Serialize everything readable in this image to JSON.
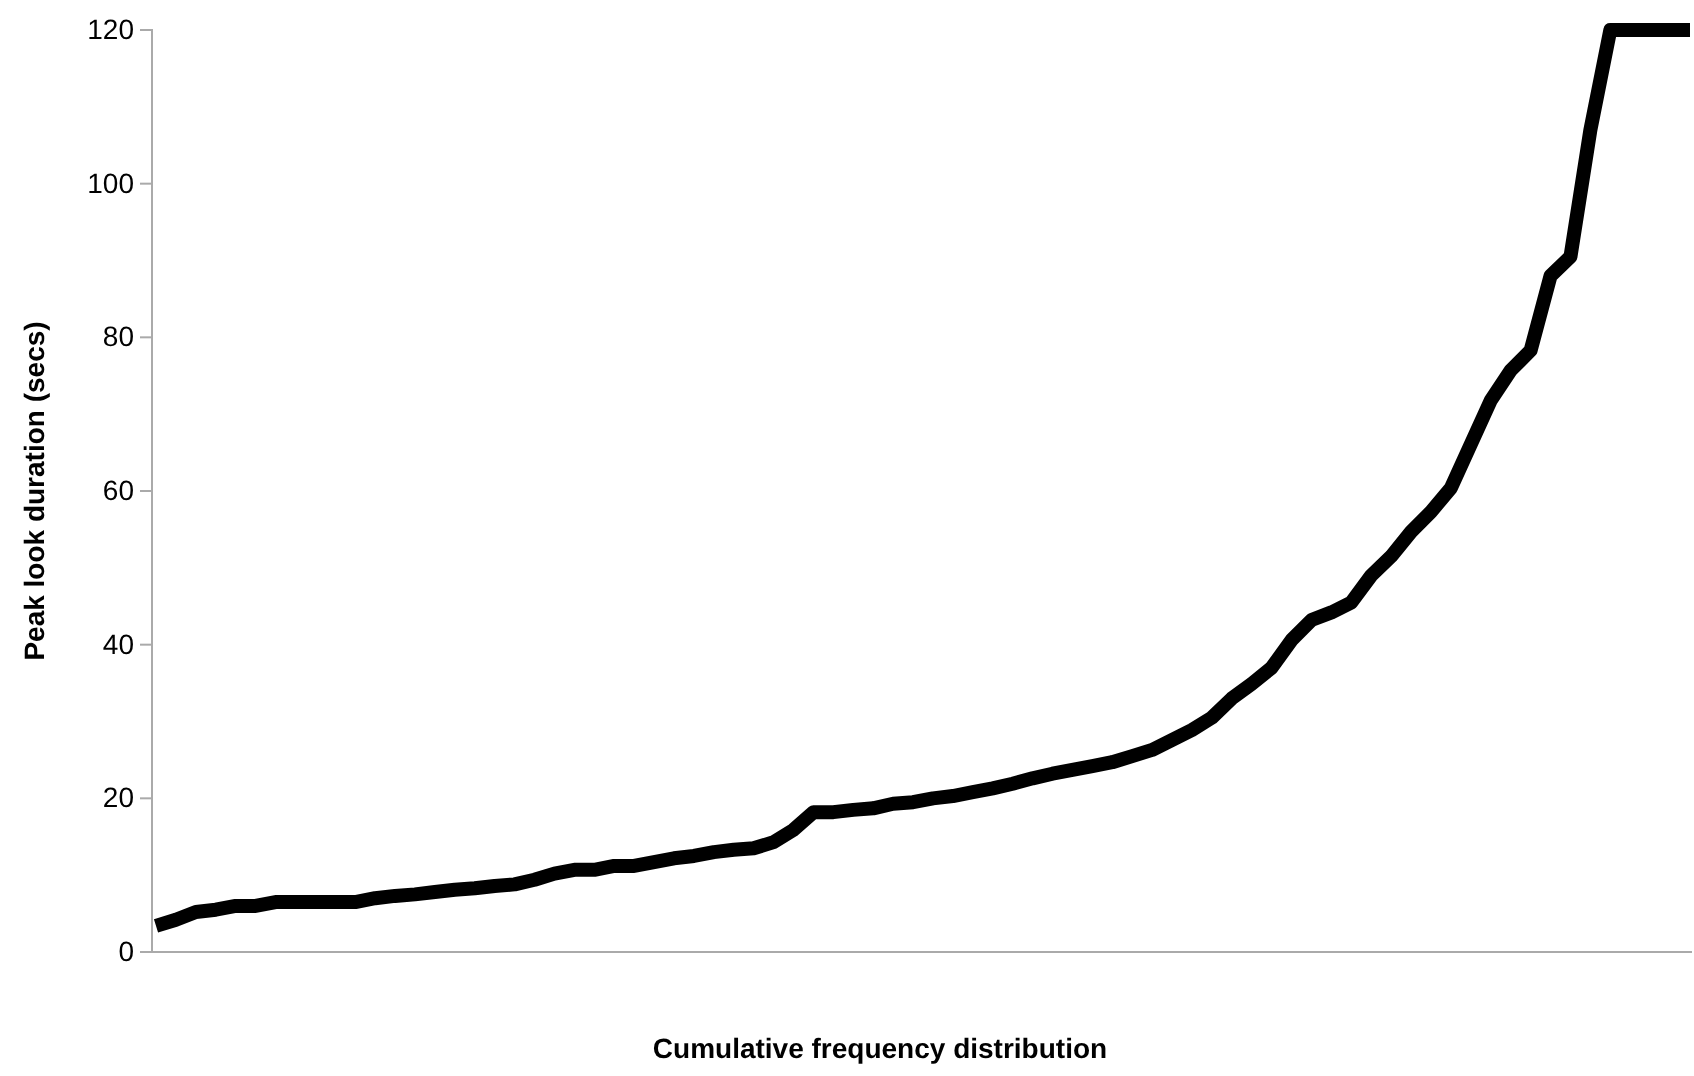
{
  "chart_data": {
    "type": "line",
    "xlabel": "Cumulative frequency distribution",
    "ylabel": "Peak look duration (secs)",
    "categories": [
      null,
      null,
      null,
      null,
      null,
      null,
      null,
      null,
      null,
      null,
      null,
      null,
      null,
      null,
      null,
      null,
      null,
      null,
      null,
      null,
      null,
      null,
      null,
      null,
      null,
      null,
      null,
      null,
      null,
      null,
      null,
      null,
      null,
      null,
      null,
      null,
      null,
      null,
      null,
      null,
      null,
      null,
      null,
      null,
      null,
      null,
      null,
      null,
      null,
      null,
      null,
      null,
      null,
      null,
      null,
      null,
      null,
      null,
      null,
      null,
      null,
      null,
      null,
      null,
      null,
      null,
      null,
      null,
      null,
      null,
      null,
      null,
      null,
      null,
      null,
      null,
      null,
      null
    ],
    "series": [
      {
        "color": "#000000",
        "values": [
          3.4,
          4.2,
          5.2,
          5.5,
          6,
          6,
          6.5,
          6.5,
          6.5,
          6.5,
          6.5,
          7,
          7.3,
          7.5,
          7.8,
          8.1,
          8.3,
          8.6,
          8.8,
          9.4,
          10.2,
          10.7,
          10.7,
          11.2,
          11.2,
          11.7,
          12.2,
          12.5,
          13,
          13.3,
          13.5,
          14.3,
          15.9,
          18.2,
          18.2,
          18.5,
          18.7,
          19.3,
          19.5,
          20,
          20.3,
          20.8,
          21.3,
          21.9,
          22.6,
          23.2,
          23.7,
          24.2,
          24.7,
          25.5,
          26.3,
          27.6,
          28.9,
          30.5,
          33,
          34.9,
          37,
          40.6,
          43.2,
          44.2,
          45.5,
          49,
          51.5,
          54.7,
          57.3,
          60.4,
          66.1,
          71.8,
          75.7,
          78.3,
          88,
          90.5,
          107,
          120,
          120,
          120,
          120,
          120
        ]
      }
    ],
    "ylim": [
      0,
      120
    ],
    "yticks": [
      0,
      20,
      40,
      60,
      80,
      100,
      120
    ],
    "tick_labels": "y",
    "grid": false,
    "marker": "none",
    "line_style": "solid"
  }
}
